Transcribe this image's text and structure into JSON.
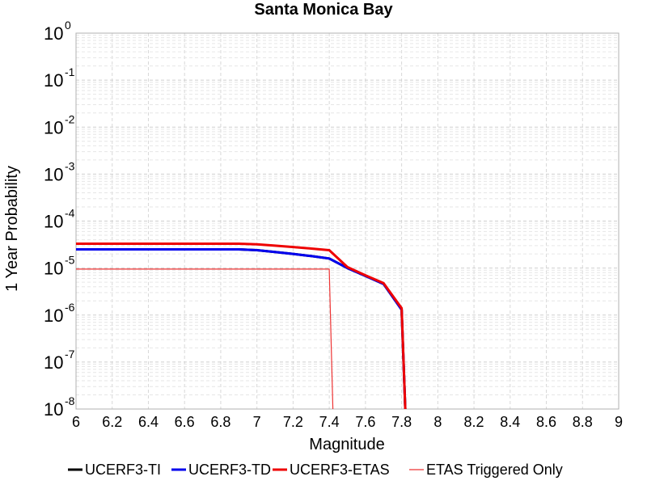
{
  "chart_data": {
    "type": "line",
    "title": "Santa Monica Bay",
    "xlabel": "Magnitude",
    "ylabel": "1 Year Probability",
    "xscale": "linear",
    "yscale": "log",
    "xlim": [
      6,
      9
    ],
    "ylim": [
      1e-08,
      1
    ],
    "grid": true,
    "legend_position": "bottom",
    "xticks": [
      "6",
      "6.2",
      "6.4",
      "6.6",
      "6.8",
      "7",
      "7.2",
      "7.4",
      "7.6",
      "7.8",
      "8",
      "8.2",
      "8.4",
      "8.6",
      "8.8",
      "9"
    ],
    "yticks": [
      {
        "base": "10",
        "exp": "0"
      },
      {
        "base": "10",
        "exp": "-1"
      },
      {
        "base": "10",
        "exp": "-2"
      },
      {
        "base": "10",
        "exp": "-3"
      },
      {
        "base": "10",
        "exp": "-4"
      },
      {
        "base": "10",
        "exp": "-5"
      },
      {
        "base": "10",
        "exp": "-6"
      },
      {
        "base": "10",
        "exp": "-7"
      },
      {
        "base": "10",
        "exp": "-8"
      }
    ],
    "series": [
      {
        "name": "UCERF3-TI",
        "color": "#000000",
        "width": 3,
        "x": [
          6.0,
          6.1,
          6.2,
          6.3,
          6.4,
          6.5,
          6.6,
          6.7,
          6.8,
          6.9,
          7.0,
          7.1,
          7.2,
          7.3,
          7.4,
          7.5,
          7.6,
          7.7,
          7.8,
          7.82
        ],
        "y": [
          2.5e-05,
          2.5e-05,
          2.5e-05,
          2.5e-05,
          2.5e-05,
          2.5e-05,
          2.5e-05,
          2.5e-05,
          2.5e-05,
          2.5e-05,
          2.4e-05,
          2.2e-05,
          2e-05,
          1.8e-05,
          1.6e-05,
          1e-05,
          6.8e-06,
          4.6e-06,
          1.3e-06,
          1e-08
        ]
      },
      {
        "name": "UCERF3-TD",
        "color": "#0000ee",
        "width": 3,
        "x": [
          6.0,
          6.1,
          6.2,
          6.3,
          6.4,
          6.5,
          6.6,
          6.7,
          6.8,
          6.9,
          7.0,
          7.1,
          7.2,
          7.3,
          7.4,
          7.5,
          7.6,
          7.7,
          7.8,
          7.82
        ],
        "y": [
          2.5e-05,
          2.5e-05,
          2.5e-05,
          2.5e-05,
          2.5e-05,
          2.5e-05,
          2.5e-05,
          2.5e-05,
          2.5e-05,
          2.5e-05,
          2.4e-05,
          2.2e-05,
          2e-05,
          1.8e-05,
          1.6e-05,
          1e-05,
          6.8e-06,
          4.6e-06,
          1.3e-06,
          1e-08
        ]
      },
      {
        "name": "UCERF3-ETAS",
        "color": "#ee0000",
        "width": 3,
        "x": [
          6.0,
          6.1,
          6.2,
          6.3,
          6.4,
          6.5,
          6.6,
          6.7,
          6.8,
          6.9,
          7.0,
          7.1,
          7.2,
          7.3,
          7.4,
          7.5,
          7.6,
          7.7,
          7.8,
          7.82
        ],
        "y": [
          3.3e-05,
          3.3e-05,
          3.3e-05,
          3.3e-05,
          3.3e-05,
          3.3e-05,
          3.3e-05,
          3.3e-05,
          3.3e-05,
          3.3e-05,
          3.2e-05,
          3e-05,
          2.8e-05,
          2.6e-05,
          2.4e-05,
          1.05e-05,
          7e-06,
          4.8e-06,
          1.4e-06,
          1e-08
        ]
      },
      {
        "name": "ETAS Triggered Only",
        "color": "#ee3333",
        "width": 1.2,
        "x": [
          6.0,
          7.4,
          7.42
        ],
        "y": [
          9.5e-06,
          9.5e-06,
          1e-08
        ]
      }
    ]
  }
}
